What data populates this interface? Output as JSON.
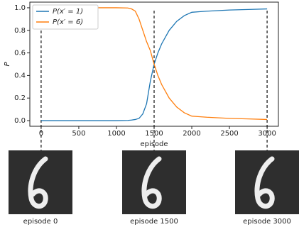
{
  "chart_data": {
    "type": "line",
    "xlabel": "episode",
    "ylabel": "P",
    "xlim": [
      -150,
      3150
    ],
    "ylim": [
      -0.05,
      1.05
    ],
    "xticks": [
      0,
      500,
      1000,
      1500,
      2000,
      2500,
      3000
    ],
    "yticks": [
      {
        "value": 0,
        "label": "0.0"
      },
      0.2,
      0.4,
      0.6,
      0.8,
      {
        "value": 1,
        "label": "1.0"
      }
    ],
    "legend": "upper left",
    "x": [
      0,
      500,
      1000,
      1150,
      1200,
      1250,
      1300,
      1350,
      1400,
      1450,
      1500,
      1550,
      1600,
      1650,
      1700,
      1800,
      1900,
      2000,
      2100,
      2200,
      2500,
      2750,
      3000
    ],
    "series": [
      {
        "name": "P(x′ = 1)",
        "color": "#1f77b4",
        "values": [
          0,
          0,
          0,
          0.002,
          0.005,
          0.01,
          0.02,
          0.06,
          0.15,
          0.35,
          0.5,
          0.6,
          0.68,
          0.74,
          0.8,
          0.88,
          0.93,
          0.96,
          0.965,
          0.97,
          0.98,
          0.985,
          0.99
        ]
      },
      {
        "name": "P(x′ = 6)",
        "color": "#ff7f0e",
        "values": [
          1,
          1,
          1,
          0.998,
          0.99,
          0.97,
          0.9,
          0.8,
          0.7,
          0.62,
          0.5,
          0.4,
          0.32,
          0.26,
          0.2,
          0.12,
          0.07,
          0.04,
          0.035,
          0.03,
          0.02,
          0.015,
          0.01
        ]
      }
    ]
  },
  "snapshots": [
    {
      "label": "episode 0"
    },
    {
      "label": "episode 1500"
    },
    {
      "label": "episode 3000"
    }
  ]
}
